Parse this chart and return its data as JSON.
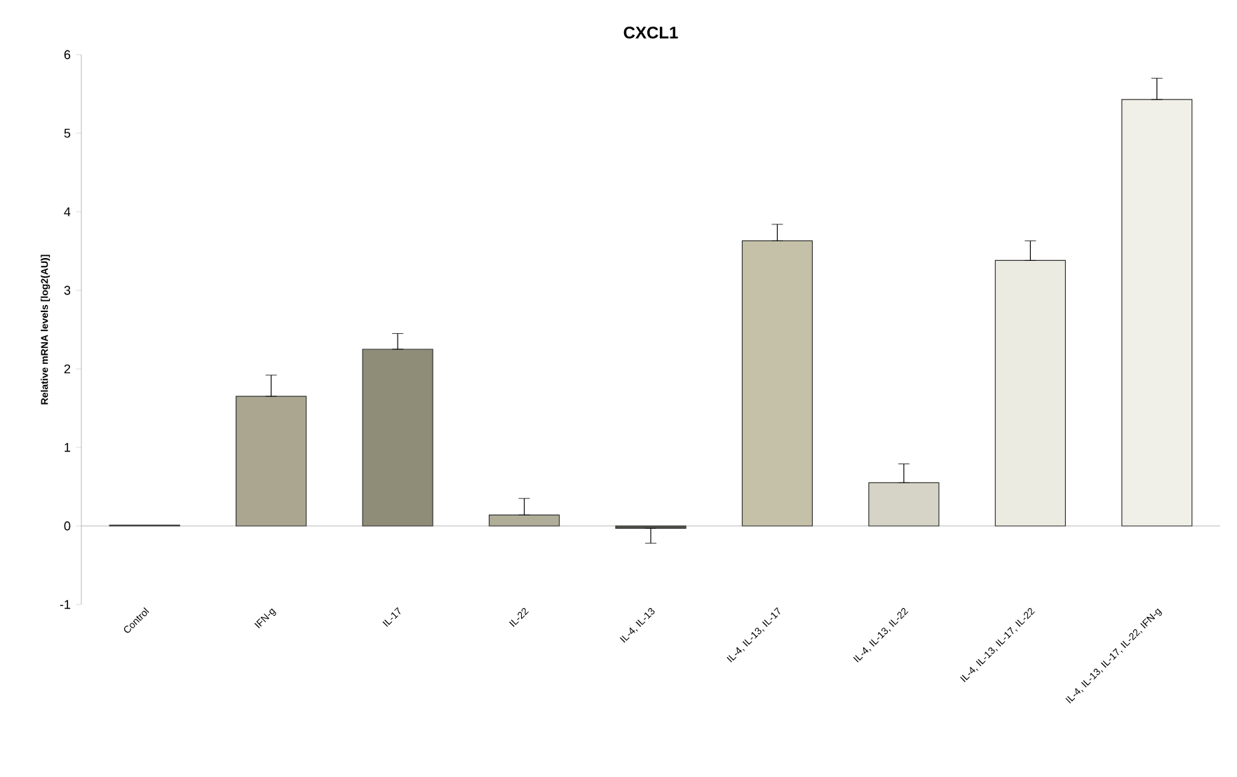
{
  "chart_data": {
    "type": "bar",
    "title": "CXCL1",
    "ylabel": "Relative mRNA levels [log2(AU)]",
    "categories": [
      "Control",
      "IFN-g",
      "IL-17",
      "IL-22",
      "IL-4, IL-13",
      "IL-4, IL-13, IL-17",
      "IL-4, IL-13, IL-22",
      "IL-4, IL-13, IL-17, IL-22",
      "IL-4, IL-13, IL-17, IL-22, IFN-g"
    ],
    "values": [
      0.01,
      1.65,
      2.25,
      0.14,
      -0.03,
      3.63,
      0.55,
      3.38,
      5.43
    ],
    "errors": [
      null,
      [
        1.65,
        1.92
      ],
      [
        2.25,
        2.45
      ],
      [
        0.14,
        0.35
      ],
      [
        -0.22,
        -0.03
      ],
      [
        3.63,
        3.84
      ],
      [
        0.55,
        0.79
      ],
      [
        3.38,
        3.63
      ],
      [
        5.43,
        5.7
      ]
    ],
    "colors": [
      "#9a9a9a",
      "#aaa690",
      "#8f8c78",
      "#b0ad98",
      "#55544c",
      "#c4c1a8",
      "#d6d4c6",
      "#ecebe2",
      "#f1f0e8"
    ],
    "ylim": [
      -1,
      6
    ],
    "yticks": [
      -1,
      0,
      1,
      2,
      3,
      4,
      5,
      6
    ]
  }
}
